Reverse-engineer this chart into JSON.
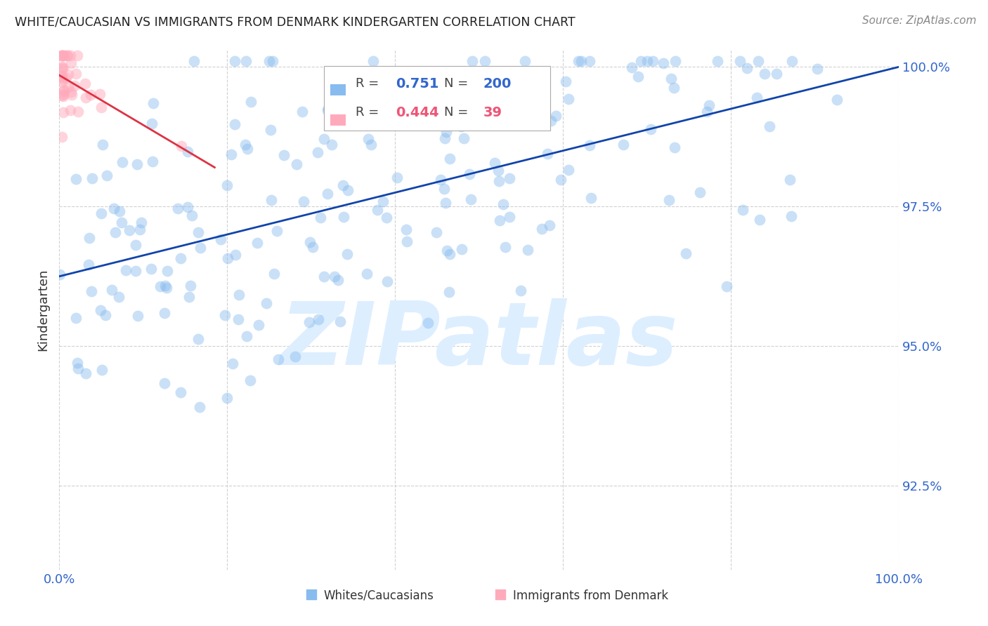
{
  "title": "WHITE/CAUCASIAN VS IMMIGRANTS FROM DENMARK KINDERGARTEN CORRELATION CHART",
  "source": "Source: ZipAtlas.com",
  "ylabel": "Kindergarten",
  "blue_r": "0.751",
  "blue_n": "200",
  "pink_r": "0.444",
  "pink_n": "39",
  "legend_blue_label": "Whites/Caucasians",
  "legend_pink_label": "Immigrants from Denmark",
  "blue_scatter_color": "#88bbee",
  "pink_scatter_color": "#ffaabb",
  "blue_line_color": "#1144aa",
  "pink_line_color": "#dd3344",
  "blue_text_color": "#3366cc",
  "pink_text_color": "#ee5577",
  "watermark_text": "ZIPatlas",
  "watermark_color": "#ddeeff",
  "title_color": "#222222",
  "source_color": "#888888",
  "axis_tick_color": "#3366cc",
  "ylabel_color": "#333333",
  "grid_color": "#cccccc",
  "xlim": [
    0.0,
    1.0
  ],
  "ylim": [
    0.91,
    1.003
  ],
  "ytick_values": [
    0.925,
    0.95,
    0.975,
    1.0
  ],
  "ytick_labels": [
    "92.5%",
    "95.0%",
    "97.5%",
    "100.0%"
  ],
  "xtick_labels": [
    "0.0%",
    "100.0%"
  ],
  "figwidth": 14.06,
  "figheight": 8.92,
  "dpi": 100,
  "blue_line_y0": 0.9625,
  "blue_line_y1": 1.0,
  "pink_line_x0": 0.0,
  "pink_line_x1": 0.185,
  "pink_line_y0": 0.9985,
  "pink_line_y1": 0.982
}
